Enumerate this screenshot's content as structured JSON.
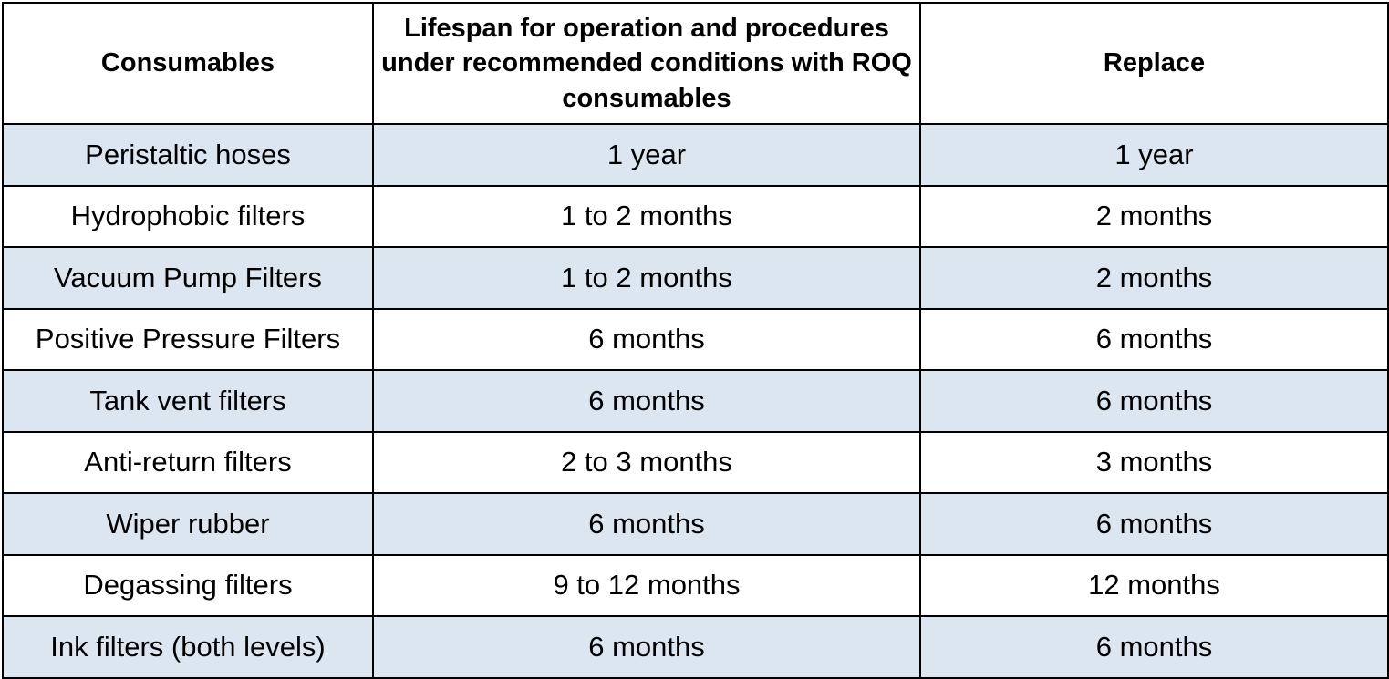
{
  "table": {
    "headers": [
      "Consumables",
      "Lifespan for operation and procedures under recommended conditions with ROQ consumables",
      "Replace"
    ],
    "rows": [
      [
        "Peristaltic hoses",
        "1 year",
        "1 year"
      ],
      [
        "Hydrophobic filters",
        "1 to 2 months",
        "2 months"
      ],
      [
        "Vacuum Pump Filters",
        "1 to 2 months",
        "2 months"
      ],
      [
        "Positive Pressure Filters",
        "6 months",
        "6 months"
      ],
      [
        "Tank vent filters",
        "6 months",
        "6 months"
      ],
      [
        "Anti-return filters",
        "2 to 3 months",
        "3 months"
      ],
      [
        "Wiper rubber",
        "6 months",
        "6 months"
      ],
      [
        "Degassing filters",
        "9 to 12 months",
        "12 months"
      ],
      [
        "Ink filters (both levels)",
        "6 months",
        "6 months"
      ]
    ]
  },
  "colors": {
    "shaded_row": "#dce6f1",
    "plain_row": "#ffffff",
    "border": "#000000"
  }
}
